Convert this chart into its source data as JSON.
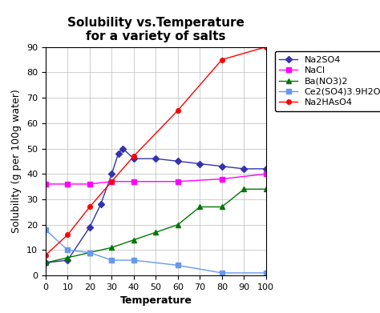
{
  "title": "Solubility vs.Temperature\nfor a variety of salts",
  "xlabel": "Temperature",
  "ylabel": "Solubility (g per 100g water)",
  "xlim": [
    0,
    100
  ],
  "ylim": [
    0,
    90
  ],
  "yticks": [
    0,
    10,
    20,
    30,
    40,
    50,
    60,
    70,
    80,
    90
  ],
  "xticks": [
    0,
    10,
    20,
    30,
    40,
    50,
    60,
    70,
    80,
    90,
    100
  ],
  "series": [
    {
      "label": "Na2SO4",
      "color": "#3333AA",
      "marker": "D",
      "markersize": 4,
      "x": [
        0,
        10,
        20,
        25,
        30,
        33,
        35,
        40,
        50,
        60,
        70,
        80,
        90,
        100
      ],
      "y": [
        5,
        6,
        19,
        28,
        40,
        48,
        50,
        46,
        46,
        45,
        44,
        43,
        42,
        42
      ]
    },
    {
      "label": "NaCl",
      "color": "#FF00FF",
      "marker": "s",
      "markersize": 4,
      "x": [
        0,
        10,
        20,
        30,
        40,
        60,
        80,
        100
      ],
      "y": [
        36,
        36,
        36,
        37,
        37,
        37,
        38,
        40
      ]
    },
    {
      "label": "Ba(NO3)2",
      "color": "#007700",
      "marker": "^",
      "markersize": 4,
      "x": [
        0,
        10,
        20,
        30,
        40,
        50,
        60,
        70,
        80,
        90,
        100
      ],
      "y": [
        5,
        7,
        9,
        11,
        14,
        17,
        20,
        27,
        27,
        34,
        34
      ]
    },
    {
      "label": "Ce2(SO4)3.9H2O",
      "color": "#6699EE",
      "marker": "s",
      "markersize": 4,
      "x": [
        0,
        10,
        20,
        30,
        40,
        60,
        80,
        100
      ],
      "y": [
        18,
        10,
        9,
        6,
        6,
        4,
        1,
        1
      ]
    },
    {
      "label": "Na2HAsO4",
      "color": "#FF0000",
      "marker": "o",
      "markersize": 4,
      "x": [
        0,
        10,
        20,
        30,
        40,
        60,
        80,
        100
      ],
      "y": [
        8,
        16,
        27,
        37,
        47,
        65,
        85,
        90
      ]
    }
  ],
  "background_color": "#ffffff",
  "grid_color": "#bbbbbb",
  "title_fontsize": 11,
  "axis_label_fontsize": 9,
  "tick_fontsize": 8,
  "legend_fontsize": 8
}
